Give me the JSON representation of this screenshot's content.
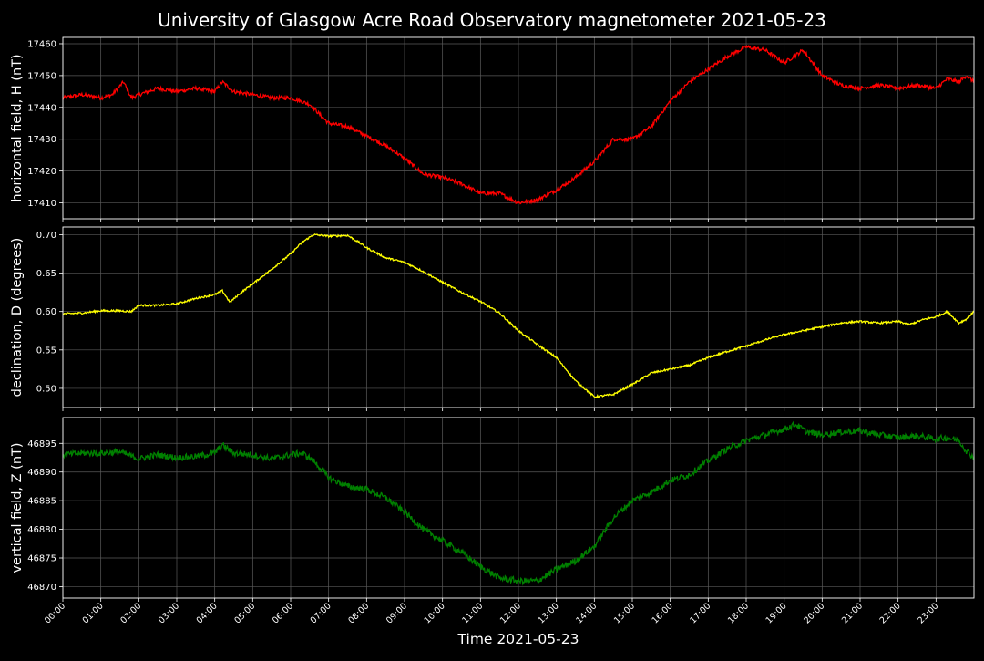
{
  "title": "University of Glasgow Acre Road Observatory magnetometer 2021-05-23",
  "xlabel": "Time 2021-05-23",
  "x_ticks": [
    "00:00",
    "01:00",
    "02:00",
    "03:00",
    "04:00",
    "05:00",
    "06:00",
    "07:00",
    "08:00",
    "09:00",
    "10:00",
    "11:00",
    "12:00",
    "13:00",
    "14:00",
    "15:00",
    "16:00",
    "17:00",
    "18:00",
    "19:00",
    "20:00",
    "21:00",
    "22:00",
    "23:00"
  ],
  "colors": {
    "background": "#000000",
    "grid": "#5a5a5a",
    "axes": "#ffffff",
    "h": "#ff0000",
    "d": "#ffff00",
    "z": "#008000"
  },
  "chart_data": [
    {
      "type": "line",
      "ylabel": "horizontal field, H (nT)",
      "ylim": [
        17405,
        17462
      ],
      "yticks": [
        17410,
        17420,
        17430,
        17440,
        17450,
        17460
      ],
      "yticks_labels": [
        "17410",
        "17420",
        "17430",
        "17440",
        "17450",
        "17460"
      ],
      "grid": true,
      "series": [
        {
          "color": "#ff0000",
          "noise": 0.6,
          "x": [
            0,
            0.5,
            1,
            1.3,
            1.6,
            1.8,
            2,
            2.5,
            3,
            3.5,
            4,
            4.2,
            4.5,
            5,
            5.5,
            6,
            6.5,
            7,
            7.5,
            8,
            8.5,
            9,
            9.5,
            10,
            10.5,
            11,
            11.5,
            12,
            12.5,
            13,
            13.5,
            14,
            14.5,
            15,
            15.5,
            16,
            16.5,
            17,
            17.5,
            18,
            18.5,
            19,
            19.5,
            20,
            20.5,
            21,
            21.5,
            22,
            22.5,
            23,
            23.3,
            23.6,
            23.8,
            24
          ],
          "y": [
            17443,
            17444,
            17443,
            17444,
            17448,
            17443,
            17444,
            17446,
            17445,
            17446,
            17445,
            17448,
            17445,
            17444,
            17443,
            17443,
            17441,
            17435,
            17434,
            17431,
            17428,
            17424,
            17419,
            17418,
            17416,
            17413,
            17413,
            17410,
            17411,
            17414,
            17418,
            17423,
            17430,
            17430,
            17434,
            17442,
            17448,
            17452,
            17456,
            17459,
            17458,
            17454,
            17458,
            17450,
            17447,
            17446,
            17447,
            17446,
            17447,
            17446,
            17449,
            17448,
            17450,
            17448
          ]
        }
      ]
    },
    {
      "type": "line",
      "ylabel": "declination, D (degrees)",
      "ylim": [
        0.475,
        0.71
      ],
      "yticks": [
        0.5,
        0.55,
        0.6,
        0.65,
        0.7
      ],
      "yticks_labels": [
        "0.50",
        "0.55",
        "0.60",
        "0.65",
        "0.70"
      ],
      "grid": true,
      "series": [
        {
          "color": "#ffff00",
          "noise": 0.0012,
          "x": [
            0,
            0.5,
            1,
            1.5,
            1.8,
            2,
            2.5,
            3,
            3.5,
            4,
            4.2,
            4.4,
            4.7,
            5,
            5.5,
            6,
            6.3,
            6.6,
            7,
            7.5,
            7.8,
            8,
            8.5,
            9,
            9.5,
            10,
            10.5,
            11,
            11.5,
            12,
            12.5,
            13,
            13.5,
            14,
            14.5,
            15,
            15.5,
            16,
            16.5,
            17,
            17.5,
            18,
            18.5,
            19,
            19.5,
            20,
            20.5,
            21,
            21.5,
            22,
            22.3,
            22.7,
            23,
            23.3,
            23.6,
            23.8,
            24
          ],
          "y": [
            0.597,
            0.598,
            0.601,
            0.601,
            0.6,
            0.608,
            0.608,
            0.61,
            0.617,
            0.622,
            0.627,
            0.612,
            0.625,
            0.636,
            0.655,
            0.675,
            0.69,
            0.7,
            0.698,
            0.699,
            0.69,
            0.683,
            0.67,
            0.664,
            0.652,
            0.638,
            0.625,
            0.613,
            0.598,
            0.575,
            0.557,
            0.54,
            0.51,
            0.489,
            0.492,
            0.505,
            0.52,
            0.525,
            0.53,
            0.54,
            0.548,
            0.555,
            0.563,
            0.57,
            0.575,
            0.58,
            0.585,
            0.587,
            0.585,
            0.587,
            0.583,
            0.59,
            0.593,
            0.6,
            0.585,
            0.59,
            0.6
          ]
        }
      ]
    },
    {
      "type": "line",
      "ylabel": "vertical field, Z (nT)",
      "ylim": [
        46868,
        46899.5
      ],
      "yticks": [
        46870,
        46875,
        46880,
        46885,
        46890,
        46895
      ],
      "yticks_labels": [
        "46870",
        "46875",
        "46880",
        "46885",
        "46890",
        "46895"
      ],
      "grid": true,
      "series": [
        {
          "color": "#008000",
          "noise": 0.55,
          "x": [
            0,
            0.5,
            1,
            1.5,
            1.7,
            2,
            2.5,
            3,
            3.5,
            4,
            4.2,
            4.5,
            5,
            5.5,
            6,
            6.3,
            6.6,
            7,
            7.5,
            8,
            8.5,
            9,
            9.5,
            10,
            10.5,
            11,
            11.5,
            12,
            12.5,
            13,
            13.5,
            14,
            14.5,
            15,
            15.5,
            16,
            16.5,
            17,
            17.5,
            18,
            18.5,
            19,
            19.3,
            19.6,
            20,
            20.5,
            21,
            21.5,
            22,
            22.5,
            23,
            23.3,
            23.6,
            23.8,
            24
          ],
          "y": [
            46893,
            46893.3,
            46893.3,
            46893.5,
            46893,
            46892.3,
            46893,
            46892.5,
            46892.7,
            46893.3,
            46894.7,
            46893.3,
            46893,
            46892.3,
            46893,
            46893.3,
            46892,
            46889,
            46887.5,
            46887,
            46885.5,
            46883,
            46880,
            46878,
            46876,
            46873.5,
            46871.5,
            46871,
            46871,
            46873,
            46874.5,
            46877,
            46882,
            46885,
            46886.5,
            46888.5,
            46889.5,
            46892,
            46894,
            46895.5,
            46896.5,
            46897.5,
            46898.3,
            46897,
            46896.5,
            46897,
            46897.2,
            46896.5,
            46896,
            46896.3,
            46895.8,
            46896,
            46895.5,
            46893.7,
            46892.5
          ]
        }
      ]
    }
  ]
}
